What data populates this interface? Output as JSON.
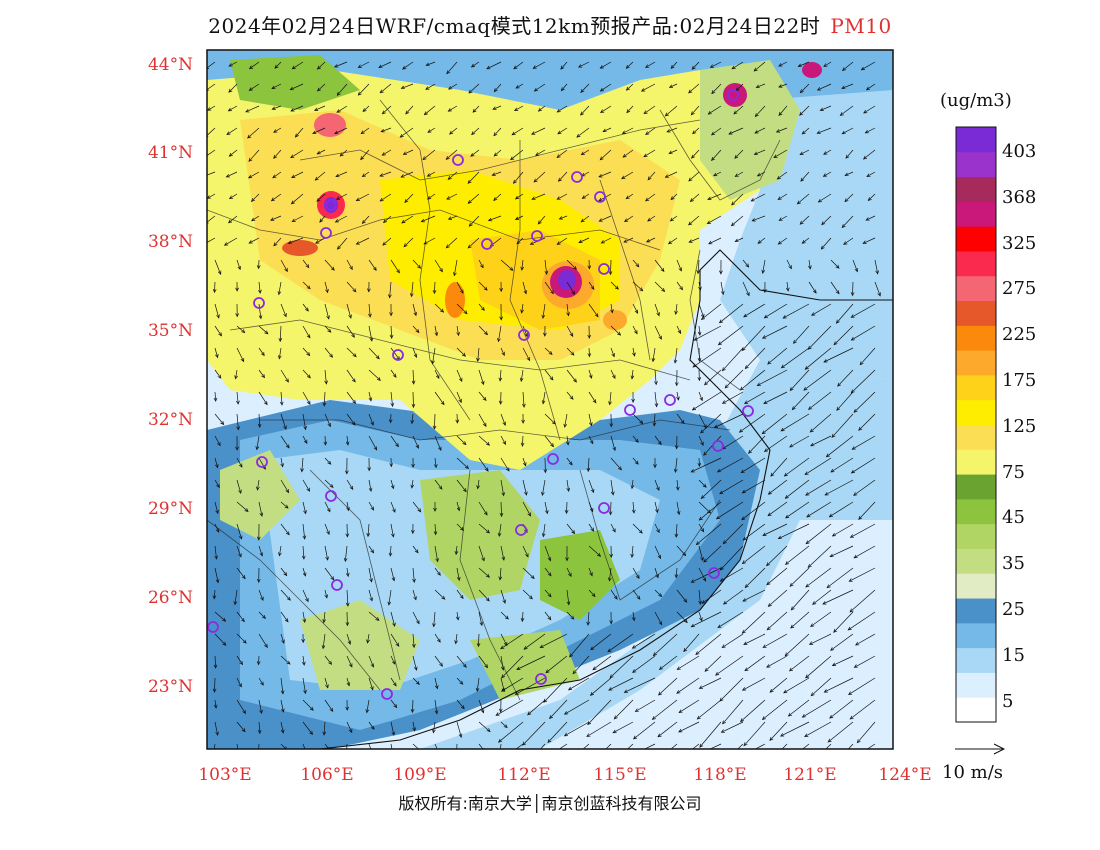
{
  "title": {
    "text": "2024年02月24日WRF/cmaq模式12km预报产品:02月24日22时",
    "pollutant": "PM10"
  },
  "lat_labels": [
    "44°N",
    "41°N",
    "38°N",
    "35°N",
    "32°N",
    "29°N",
    "26°N",
    "23°N"
  ],
  "lon_labels": [
    "103°E",
    "106°E",
    "109°E",
    "112°E",
    "115°E",
    "118°E",
    "121°E",
    "124°E"
  ],
  "colorbar": {
    "unit": "(ug/m3)",
    "colors": [
      "#ffffff",
      "#dcefff",
      "#a8d8f5",
      "#74b9e7",
      "#4a90c9",
      "#e1ecc4",
      "#c3de82",
      "#b0d565",
      "#8cc43e",
      "#6aa32f",
      "#f4f56a",
      "#fcde55",
      "#ffed00",
      "#ffd21a",
      "#fca92c",
      "#fb8a0c",
      "#e6582a",
      "#f46672",
      "#fa2a4f",
      "#ff0000",
      "#c9177a",
      "#a62a5c",
      "#9933cc",
      "#7b2bd6"
    ],
    "labels": [
      "5",
      "15",
      "25",
      "35",
      "45",
      "75",
      "125",
      "175",
      "225",
      "275",
      "325",
      "368",
      "403"
    ]
  },
  "wind_scale": {
    "label": "10 m/s"
  },
  "cities_count": 25,
  "footer": {
    "copyright": "版权所有:南京大学│南京创蓝科技有限公司"
  }
}
